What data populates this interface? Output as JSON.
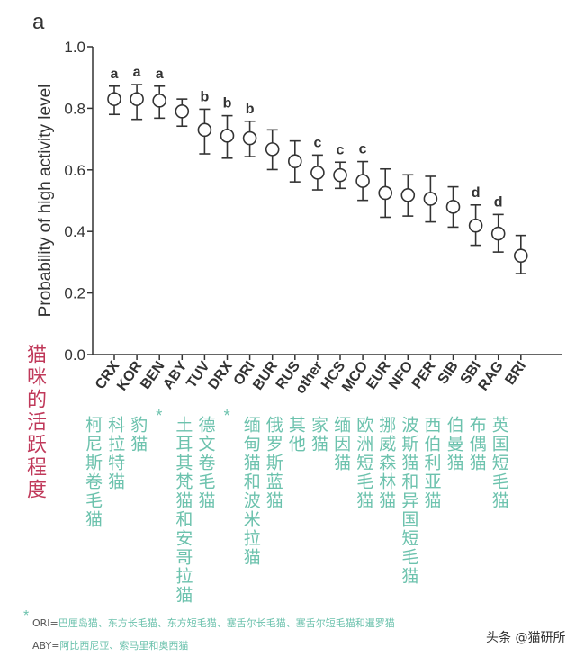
{
  "chart_data": {
    "type": "scatter",
    "panel_label": "a",
    "ylabel": "Probability of high activity level",
    "ylabel_cn": "猫咪的活跃程度",
    "ylim": [
      0,
      1.0
    ],
    "yticks": [
      "0.0",
      "0.2",
      "0.4",
      "0.6",
      "0.8",
      "1.0"
    ],
    "grid": false,
    "categories": [
      "CRX",
      "KOR",
      "BEN",
      "ABY",
      "TUV",
      "DRX",
      "ORI",
      "BUR",
      "RUS",
      "other",
      "HCS",
      "MCO",
      "EUR",
      "NFO",
      "PER",
      "SIB",
      "SBI",
      "RAG",
      "BRI"
    ],
    "categories_cn": [
      "柯尼斯卷毛猫",
      "科拉特猫",
      "豹猫",
      "*",
      "土耳其梵猫和安哥拉猫",
      "德文卷毛猫",
      "*",
      "缅甸猫和波米拉猫",
      "俄罗斯蓝猫",
      "其他",
      "家猫",
      "缅因猫",
      "欧洲短毛猫",
      "挪威森林猫",
      "波斯猫和异国短毛猫",
      "西伯利亚猫",
      "伯曼猫",
      "布偶猫",
      "英国短毛猫"
    ],
    "values": [
      0.83,
      0.83,
      0.825,
      0.79,
      0.73,
      0.711,
      0.703,
      0.667,
      0.628,
      0.591,
      0.583,
      0.564,
      0.525,
      0.518,
      0.506,
      0.48,
      0.419,
      0.393,
      0.321
    ],
    "upper": [
      0.872,
      0.877,
      0.872,
      0.83,
      0.797,
      0.776,
      0.758,
      0.73,
      0.694,
      0.648,
      0.625,
      0.627,
      0.603,
      0.584,
      0.579,
      0.545,
      0.486,
      0.455,
      0.387
    ],
    "lower": [
      0.78,
      0.764,
      0.768,
      0.742,
      0.652,
      0.638,
      0.643,
      0.601,
      0.561,
      0.535,
      0.54,
      0.501,
      0.446,
      0.45,
      0.431,
      0.414,
      0.355,
      0.333,
      0.263
    ],
    "group_letters": [
      "a",
      "a",
      "a",
      "",
      "b",
      "b",
      "b",
      "",
      "",
      "c",
      "c",
      "c",
      "",
      "",
      "",
      "",
      "d",
      "d",
      ""
    ]
  },
  "footnotes": {
    "star": "*",
    "ori_key": "ORI=",
    "ori_text": "巴厘岛猫、东方长毛猫、东方短毛猫、塞舌尔长毛猫、塞舌尔短毛猫和暹罗猫",
    "aby_key": "ABY=",
    "aby_text": "阿比西尼亚、索马里和奥西猫"
  },
  "watermark": "头条 @猫研所",
  "colors": {
    "cn_label": "#6cc2ad",
    "cn_axis": "#c0395a",
    "ink": "#333333"
  }
}
